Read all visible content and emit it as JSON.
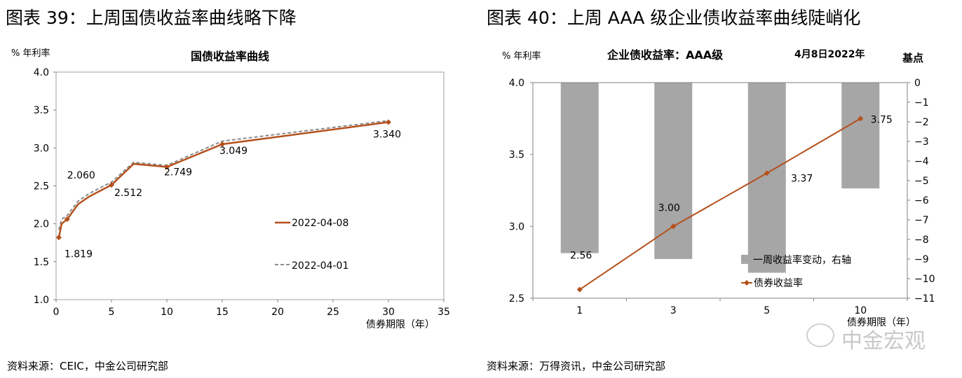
{
  "figures": [
    {
      "title": "图表 39：上周国债收益率曲线略下降",
      "source": "资料来源：CEIC，中金公司研究部"
    },
    {
      "title": "图表 40：上周 AAA 级企业债收益率曲线陡峭化",
      "source": "资料来源：万得资讯，中金公司研究部"
    }
  ],
  "watermark": "中金宏观",
  "chart_data": [
    {
      "type": "line",
      "title": "国债收益率曲线",
      "ylabel": "% 年利率",
      "xlabel": "债券期限（年）",
      "xlim": [
        0,
        35
      ],
      "ylim": [
        1.0,
        4.0
      ],
      "xticks": [
        "0",
        "5",
        "10",
        "15",
        "20",
        "25",
        "30",
        "35"
      ],
      "yticks": [
        "1.0",
        "1.5",
        "2.0",
        "2.5",
        "3.0",
        "3.5",
        "4.0"
      ],
      "x": [
        0.25,
        0.5,
        1,
        2,
        3,
        5,
        7,
        10,
        15,
        30
      ],
      "series": [
        {
          "name": "2022-04-08",
          "style": "solid",
          "color": "#B5501C",
          "values": [
            1.819,
            2.0,
            2.06,
            2.26,
            2.36,
            2.512,
            2.79,
            2.749,
            3.049,
            3.34
          ],
          "markers_at": [
            0.25,
            1,
            5,
            10,
            15,
            30
          ]
        },
        {
          "name": "2022-04-01",
          "style": "dashed",
          "color": "#8C8C8C",
          "values": [
            1.92,
            2.06,
            2.11,
            2.3,
            2.4,
            2.55,
            2.81,
            2.77,
            3.09,
            3.36
          ]
        }
      ],
      "data_labels": [
        {
          "x": 0.25,
          "text": "1.819"
        },
        {
          "x": 1,
          "text": "2.060"
        },
        {
          "x": 5,
          "text": "2.512"
        },
        {
          "x": 10,
          "text": "2.749"
        },
        {
          "x": 15,
          "text": "3.049"
        },
        {
          "x": 30,
          "text": "3.340"
        }
      ],
      "legend": "center-right"
    },
    {
      "type": "bar+line",
      "title": "企业债收益率：AAA级",
      "subtitle": "4月8日2022年",
      "ylabel": "% 年利率",
      "y2label": "基点",
      "xlabel": "债券期限（年）",
      "categories": [
        "1",
        "3",
        "5",
        "10"
      ],
      "ylim": [
        2.5,
        4.0
      ],
      "y2lim": [
        -11,
        0
      ],
      "yticks": [
        "2.5",
        "3.0",
        "3.5",
        "4.0"
      ],
      "y2ticks": [
        "0",
        "-1",
        "-2",
        "-3",
        "-4",
        "-5",
        "-6",
        "-7",
        "-8",
        "-9",
        "-10",
        "-11"
      ],
      "series": [
        {
          "name": "一周收益率变动，右轴",
          "type": "bar",
          "axis": "right",
          "color": "#A6A6A6",
          "values": [
            -8.7,
            -9.0,
            -9.7,
            -5.4
          ]
        },
        {
          "name": "债券收益率",
          "type": "line",
          "axis": "left",
          "color": "#B5501C",
          "values": [
            2.56,
            3.0,
            3.37,
            3.75
          ],
          "labels": [
            "2.56",
            "3.00",
            "3.37",
            "3.75"
          ]
        }
      ],
      "legend": "bottom-right"
    }
  ]
}
